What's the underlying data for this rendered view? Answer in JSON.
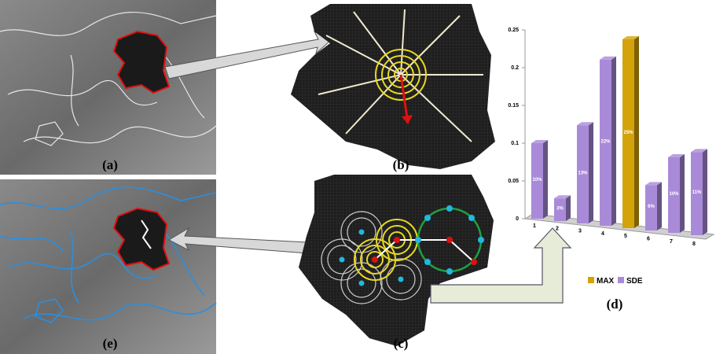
{
  "panel_labels": [
    "(a)",
    "(b)",
    "(c)",
    "(d)",
    "(e)"
  ],
  "chart_data": {
    "type": "bar3d",
    "categories": [
      "1",
      "2",
      "3",
      "4",
      "5",
      "6",
      "7",
      "8"
    ],
    "series": [
      {
        "name": "MAX",
        "color": "#d4a20a",
        "values": [
          null,
          null,
          null,
          null,
          0.25,
          null,
          null,
          null
        ],
        "value_labels": [
          null,
          null,
          null,
          null,
          "25%",
          null,
          null,
          null
        ]
      },
      {
        "name": "SDE",
        "color": "#a98ad8",
        "values": [
          0.1,
          0.03,
          0.13,
          0.22,
          null,
          0.06,
          0.1,
          0.11
        ],
        "value_labels": [
          "10%",
          "3%",
          "13%",
          "22%",
          null,
          "6%",
          "10%",
          "11%"
        ]
      }
    ],
    "ylim": [
      0,
      0.25
    ],
    "yticks": [
      0,
      0.05,
      0.1,
      0.15,
      0.2,
      0.25
    ],
    "legend": "bottom"
  }
}
